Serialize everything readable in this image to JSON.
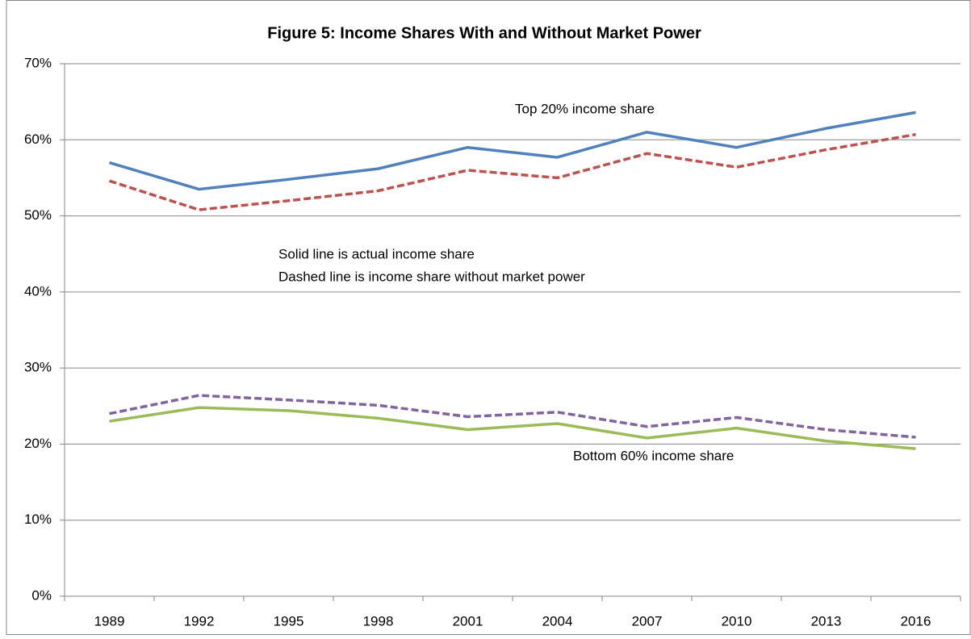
{
  "chart_data": {
    "type": "line",
    "title": "Figure 5: Income Shares With and Without Market Power",
    "categories": [
      "1989",
      "1992",
      "1995",
      "1998",
      "2001",
      "2004",
      "2007",
      "2010",
      "2013",
      "2016"
    ],
    "series": [
      {
        "color": "#4f81bd",
        "dashed": false,
        "values": [
          57,
          53.5,
          54.8,
          56.2,
          59,
          57.7,
          61,
          59,
          61.5,
          63.6
        ]
      },
      {
        "color": "#c0504d",
        "dashed": true,
        "values": [
          54.6,
          50.8,
          52,
          53.3,
          56,
          55,
          58.2,
          56.4,
          58.7,
          60.7
        ]
      },
      {
        "color": "#8064a2",
        "dashed": true,
        "values": [
          24,
          26.4,
          25.8,
          25.1,
          23.6,
          24.2,
          22.3,
          23.5,
          21.9,
          20.9
        ]
      },
      {
        "color": "#9bbb59",
        "dashed": false,
        "values": [
          23,
          24.8,
          24.4,
          23.4,
          21.9,
          22.7,
          20.8,
          22.1,
          20.4,
          19.4
        ]
      }
    ],
    "annotations": [
      "Top 20% income share",
      "Solid line is actual income share",
      "Dashed line is income share without market power",
      "Bottom 60% income share"
    ],
    "ylim": [
      0,
      70
    ],
    "yticks": [
      {
        "value": 0,
        "label": "0%"
      },
      {
        "value": 10,
        "label": "10%"
      },
      {
        "value": 20,
        "label": "20%"
      },
      {
        "value": 30,
        "label": "30%"
      },
      {
        "value": 40,
        "label": "40%"
      },
      {
        "value": 50,
        "label": "50%"
      },
      {
        "value": 60,
        "label": "60%"
      },
      {
        "value": 70,
        "label": "70%"
      }
    ],
    "grid": true
  }
}
